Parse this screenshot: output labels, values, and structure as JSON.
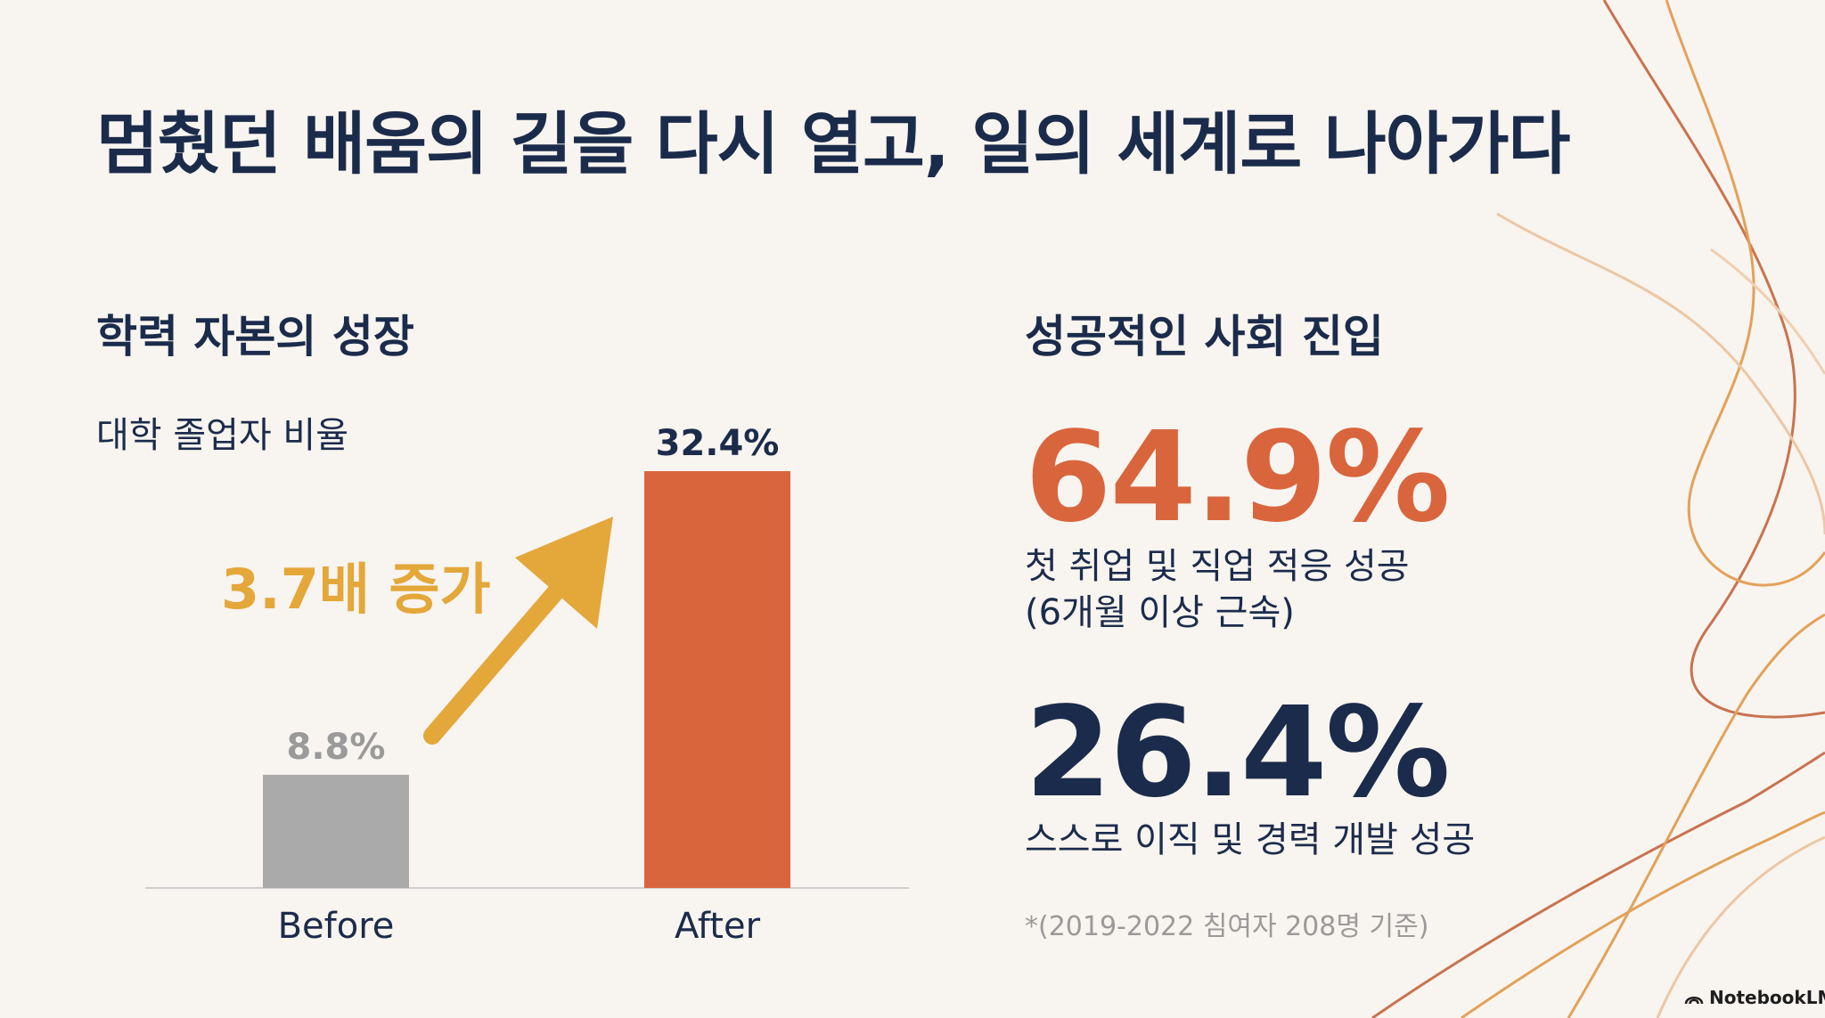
{
  "slide": {
    "title": "멈췄던 배움의 길을 다시 열고, 일의 세계로 나아가다"
  },
  "left_section": {
    "heading": "학력 자본의 성장"
  },
  "right_section": {
    "heading": "성공적인 사회 진입",
    "stat1": {
      "value": "64.9%",
      "desc_line1": "첫 취업 및 직업 적응 성공",
      "desc_line2": "(6개월 이상 근속)"
    },
    "stat2": {
      "value": "26.4%",
      "desc": "스스로 이직 및 경력 개발 성공"
    },
    "footnote": "*(2019-2022 침여자 208명 기준)"
  },
  "branding": {
    "label": "NotebookLM"
  },
  "colors": {
    "background": "#f8f4ef",
    "navy": "#1b2b4b",
    "accent_orange": "#d9653d",
    "arrow_gold": "#e4a73a",
    "before_gray": "#aaaaaa"
  },
  "chart_data": {
    "type": "bar",
    "title": "대학 졸업자 비율",
    "categories": [
      "Before",
      "After"
    ],
    "values": [
      8.8,
      32.4
    ],
    "value_labels": [
      "8.8%",
      "32.4%"
    ],
    "ylim": [
      0,
      32.4
    ],
    "bar_colors": [
      "#aaaaaa",
      "#d9653d"
    ],
    "value_label_colors": [
      "#9a9a9a",
      "#1b2b4b"
    ],
    "annotation": "3.7배 증가",
    "grid": false,
    "legend": "none"
  }
}
